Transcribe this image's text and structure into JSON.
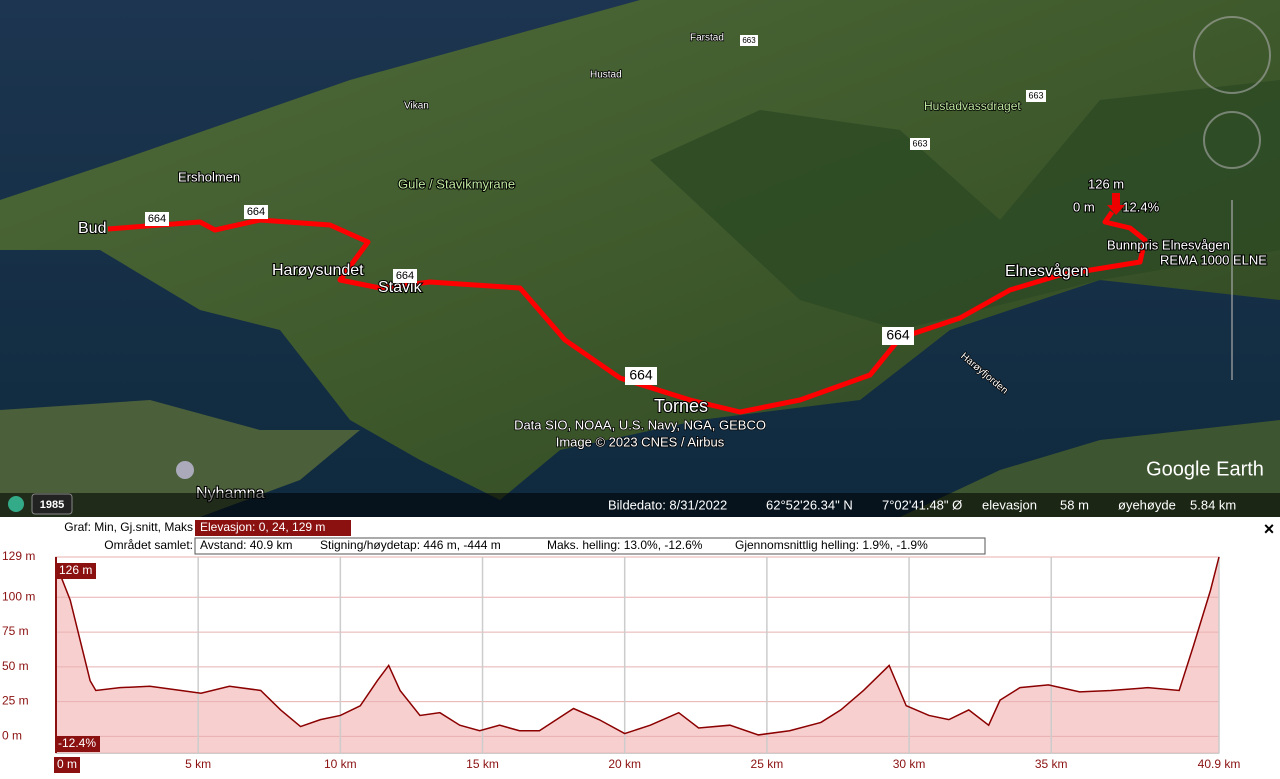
{
  "map": {
    "labels": [
      "Bud",
      "Ersholmen",
      "Gule / Stavikmyrane",
      "Harøysundet",
      "Stavik",
      "Tornes",
      "Elnesvågen",
      "Nyhamna",
      "Vikan",
      "Hustad",
      "Farstad",
      "Hustadvassdraget",
      "Bunnpris Elnesvågen",
      "REMA 1000 ELNE",
      "Harøyfjorden"
    ],
    "roads": [
      "664",
      "663"
    ],
    "cursor": {
      "elevation": "126 m",
      "base": "0 m",
      "slope": "-12.4%"
    },
    "attribution": [
      "Data SIO, NOAA, U.S. Navy, NGA, GEBCO",
      "Image © 2023 CNES / Airbus"
    ],
    "brand": "Google Earth",
    "year": "1985"
  },
  "status": {
    "date": "Bildedato: 8/31/2022",
    "lat": "62°52'26.34\" N",
    "lon": "7°02'41.48\" Ø",
    "elev_label": "elevasjon",
    "elev": "58 m",
    "eye_label": "øyehøyde",
    "eye": "5.84 km"
  },
  "profile": {
    "graph_label": "Graf: Min, Gj.snitt, Maks",
    "elevation": "Elevasjon: 0, 24, 129 m",
    "total_label": "Området samlet:",
    "distance": "Avstand: 40.9 km",
    "climb": "Stigning/høydetap: 446 m, -444 m",
    "max_slope": "Maks. helling: 13.0%, -12.6%",
    "avg_slope": "Gjennomsnittlig helling: 1.9%, -1.9%",
    "cursor_value": "126 m",
    "cursor_slope": "-12.4%",
    "close": "×"
  },
  "chart_data": {
    "type": "area",
    "x": [
      0,
      0.5,
      0.85,
      1.2,
      1.4,
      2.25,
      3.3,
      4.4,
      5.1,
      6.1,
      7.2,
      7.9,
      8.6,
      9.3,
      10,
      10.7,
      11.3,
      11.7,
      12.1,
      12.8,
      13.5,
      14.2,
      14.9,
      15.6,
      16.3,
      17,
      18.2,
      19.1,
      20,
      20.9,
      21.9,
      22.6,
      23.7,
      24.7,
      25.8,
      26.9,
      27.6,
      28.4,
      29.3,
      29.9,
      30.7,
      31.4,
      32.1,
      32.8,
      33.2,
      33.9,
      34.9,
      36,
      37.1,
      38.4,
      39.5,
      40,
      40.6,
      40.9
    ],
    "series": [
      {
        "color": "#8b0000",
        "fill": "#f6c3c3",
        "values": [
          124,
          98,
          69,
          40,
          33,
          35,
          36,
          33,
          31,
          36,
          33,
          19,
          7,
          12,
          15,
          22,
          40,
          51,
          33,
          15,
          17,
          8,
          4,
          8,
          4,
          4,
          20,
          12,
          2,
          8,
          17,
          6,
          8,
          1,
          4,
          10,
          19,
          33,
          51,
          22,
          15,
          12,
          19,
          8,
          26,
          35,
          37,
          32,
          33,
          35,
          33,
          65,
          105,
          129
        ]
      }
    ],
    "xlim": [
      0,
      40.9
    ],
    "ylim": [
      -12,
      129
    ],
    "xticks": [
      {
        "value": 0,
        "label": "0 m"
      },
      {
        "value": 5,
        "label": "5 km"
      },
      {
        "value": 10,
        "label": "10 km"
      },
      {
        "value": 15,
        "label": "15 km"
      },
      {
        "value": 20,
        "label": "20 km"
      },
      {
        "value": 25,
        "label": "25 km"
      },
      {
        "value": 30,
        "label": "30 km"
      },
      {
        "value": 35,
        "label": "35 km"
      },
      {
        "value": 40.9,
        "label": "40.9 km"
      }
    ],
    "yticks": [
      {
        "value": 0,
        "label": "0 m"
      },
      {
        "value": 25,
        "label": "25 m"
      },
      {
        "value": 50,
        "label": "50 m"
      },
      {
        "value": 75,
        "label": "75 m"
      },
      {
        "value": 100,
        "label": "100 m"
      },
      {
        "value": 129,
        "label": "129 m"
      }
    ],
    "grid": true
  }
}
